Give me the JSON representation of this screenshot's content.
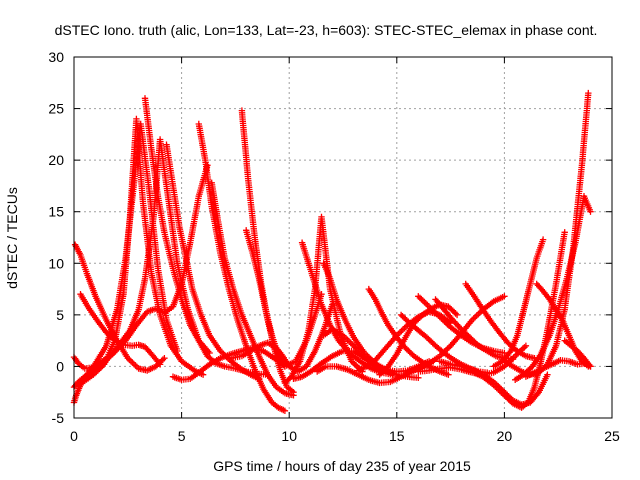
{
  "chart_data": {
    "type": "scatter",
    "title": "dSTEC Iono. truth (alic, Lon=133, Lat=-23, h=603): STEC-STEC_elemax in phase cont.",
    "xlabel": "GPS time / hours of day 235 of year 2015",
    "ylabel": "dSTEC  / TECUs",
    "xlim": [
      0,
      25
    ],
    "ylim": [
      -5,
      30
    ],
    "xticks": [
      0,
      5,
      10,
      15,
      20,
      25
    ],
    "yticks": [
      -5,
      0,
      5,
      10,
      15,
      20,
      25,
      30
    ],
    "grid": true,
    "marker": "+",
    "colors": {
      "series": "#ff0000",
      "grid": "#a0a0a0",
      "axis": "#000000"
    },
    "series": [
      {
        "x": [
          0.0,
          0.1,
          0.3,
          0.6,
          1.0,
          1.5,
          2.0,
          2.4,
          2.8,
          3.1,
          3.5,
          3.9,
          4.3,
          4.8
        ],
        "y": [
          -3.5,
          -2.8,
          -1.8,
          -0.8,
          0.3,
          2.0,
          5.5,
          10.5,
          18.0,
          23.5,
          17.0,
          9.5,
          4.5,
          1.5
        ]
      },
      {
        "x": [
          0.2,
          0.5,
          0.9,
          1.4,
          1.9,
          2.3,
          2.6,
          2.9,
          3.2,
          3.6,
          4.0,
          4.5,
          5.0,
          5.6,
          6.0
        ],
        "y": [
          -1.8,
          -1.4,
          -0.8,
          0.2,
          2.5,
          7.0,
          14.5,
          24.0,
          16.0,
          9.0,
          5.0,
          2.0,
          0.5,
          -0.4,
          -0.8
        ]
      },
      {
        "x": [
          0.05,
          0.3,
          0.6,
          1.0,
          1.5,
          2.0,
          2.5,
          3.0,
          3.4,
          3.8,
          4.2
        ],
        "y": [
          11.8,
          10.8,
          9.0,
          6.8,
          4.5,
          2.5,
          0.8,
          -0.2,
          -0.4,
          0.0,
          0.8
        ]
      },
      {
        "x": [
          0.0,
          0.2,
          0.5,
          0.9,
          1.3,
          1.8,
          2.4,
          2.9,
          3.4,
          3.8,
          4.2,
          4.6,
          5.0,
          5.4,
          5.8,
          6.2
        ],
        "y": [
          0.9,
          0.3,
          -0.2,
          -0.1,
          0.5,
          1.2,
          2.5,
          4.0,
          5.3,
          5.6,
          5.2,
          5.8,
          8.0,
          12.0,
          16.5,
          19.5
        ]
      },
      {
        "x": [
          0.0,
          0.2,
          0.5,
          0.9,
          1.4,
          2.0,
          2.6,
          3.0,
          3.3,
          3.7,
          4.0,
          4.4,
          4.8,
          5.3,
          5.8,
          6.3
        ],
        "y": [
          -2.0,
          -1.5,
          -1.0,
          -0.5,
          0.3,
          1.8,
          3.5,
          5.5,
          8.5,
          14.5,
          22.0,
          16.0,
          10.0,
          5.5,
          2.5,
          1.3
        ]
      },
      {
        "x": [
          0.3,
          0.7,
          1.1,
          1.5,
          1.9,
          2.3,
          2.7,
          3.0,
          3.3,
          3.6,
          4.0
        ],
        "y": [
          7.0,
          5.6,
          4.4,
          3.3,
          2.5,
          2.1,
          2.0,
          2.1,
          1.9,
          1.2,
          0.2
        ]
      },
      {
        "x": [
          3.3,
          3.6,
          3.9,
          4.2,
          4.6,
          5.0,
          5.4,
          5.8,
          6.2,
          6.6,
          7.0,
          7.5,
          8.0,
          8.5,
          9.0
        ],
        "y": [
          26.0,
          21.0,
          16.5,
          13.0,
          9.5,
          6.5,
          4.0,
          2.5,
          1.0,
          0.3,
          0.0,
          -0.2,
          -0.5,
          -0.7,
          -0.8
        ]
      },
      {
        "x": [
          4.3,
          4.6,
          4.9,
          5.2,
          5.5,
          5.9,
          6.3,
          6.8,
          7.3,
          7.8,
          8.2,
          8.6
        ],
        "y": [
          21.5,
          17.5,
          13.5,
          10.5,
          7.5,
          5.0,
          3.0,
          1.5,
          0.5,
          -0.3,
          -0.8,
          -1.2
        ]
      },
      {
        "x": [
          5.8,
          6.1,
          6.4,
          6.8,
          7.2,
          7.6,
          8.0,
          8.4,
          8.8,
          9.2,
          9.5,
          9.8
        ],
        "y": [
          23.5,
          20.0,
          15.5,
          11.0,
          7.5,
          4.5,
          2.0,
          -0.3,
          -2.2,
          -3.5,
          -4.0,
          -4.3
        ]
      },
      {
        "x": [
          6.4,
          6.7,
          7.0,
          7.4,
          7.8,
          8.2,
          8.6,
          9.0,
          9.4,
          9.8,
          10.2
        ],
        "y": [
          17.8,
          14.0,
          10.5,
          7.5,
          5.0,
          3.0,
          1.0,
          -0.8,
          -2.0,
          -2.6,
          -2.8
        ]
      },
      {
        "x": [
          7.8,
          8.1,
          8.4,
          8.7,
          9.0,
          9.3,
          9.6,
          9.9,
          10.2
        ],
        "y": [
          24.8,
          18.0,
          12.5,
          8.0,
          4.5,
          1.8,
          -0.5,
          -2.0,
          -2.5
        ]
      },
      {
        "x": [
          8.0,
          8.3,
          8.6,
          8.9,
          9.2,
          9.5,
          9.8
        ],
        "y": [
          13.2,
          11.0,
          8.5,
          5.5,
          3.0,
          1.0,
          0.0
        ]
      },
      {
        "x": [
          4.6,
          5.0,
          5.4,
          5.8,
          6.3,
          6.8,
          7.3,
          7.8,
          8.3,
          8.8,
          9.3,
          9.8,
          10.3,
          10.8,
          11.2,
          11.5
        ],
        "y": [
          -1.0,
          -1.3,
          -1.2,
          -0.6,
          0.2,
          0.8,
          1.2,
          1.5,
          1.8,
          1.5,
          0.8,
          0.0,
          0.5,
          2.5,
          5.0,
          7.0
        ]
      },
      {
        "x": [
          7.3,
          7.8,
          8.2,
          8.6,
          9.0,
          9.4,
          9.7,
          10.0,
          10.4,
          10.8,
          11.2,
          11.6,
          12.0
        ],
        "y": [
          0.8,
          1.0,
          1.5,
          2.0,
          2.3,
          1.8,
          1.0,
          0.0,
          -0.5,
          0.0,
          1.5,
          3.5,
          6.0
        ]
      },
      {
        "x": [
          9.8,
          10.1,
          10.5,
          10.9,
          11.2,
          11.5,
          11.9,
          12.4,
          12.9,
          13.4
        ],
        "y": [
          -1.6,
          -1.0,
          0.5,
          3.5,
          7.5,
          14.5,
          7.5,
          3.0,
          0.5,
          -0.5
        ]
      },
      {
        "x": [
          10.6,
          10.9,
          11.2,
          11.5,
          11.9,
          12.3,
          12.8,
          13.3,
          13.8,
          14.3,
          14.8
        ],
        "y": [
          12.0,
          10.0,
          8.0,
          6.0,
          4.0,
          2.5,
          1.3,
          0.5,
          -0.2,
          -0.6,
          -0.8
        ]
      },
      {
        "x": [
          11.6,
          11.9,
          12.2,
          12.6,
          13.0,
          13.5,
          14.0,
          14.5,
          15.0,
          15.5,
          16.0
        ],
        "y": [
          10.0,
          8.5,
          6.5,
          4.5,
          2.8,
          1.3,
          0.3,
          -0.4,
          -0.8,
          -1.0,
          -1.1
        ]
      },
      {
        "x": [
          10.2,
          10.6,
          11.0,
          11.5,
          12.0,
          12.5,
          13.0,
          13.5,
          14.0,
          14.5,
          15.0
        ],
        "y": [
          -1.2,
          -1.0,
          -0.5,
          0.3,
          1.0,
          1.5,
          1.5,
          0.8,
          0.0,
          -0.5,
          -0.8
        ]
      },
      {
        "x": [
          11.3,
          11.7,
          12.2,
          12.7,
          13.2,
          13.7,
          14.2,
          14.7,
          15.2,
          15.7,
          16.2,
          16.7
        ],
        "y": [
          -0.5,
          0.0,
          0.0,
          -0.3,
          -0.8,
          -1.3,
          -1.6,
          -1.5,
          -1.0,
          -0.5,
          0.0,
          0.5
        ]
      },
      {
        "x": [
          11.6,
          12.0,
          12.5,
          13.0,
          13.5,
          14.0,
          14.5,
          15.0,
          15.5,
          16.0,
          16.5
        ],
        "y": [
          3.0,
          3.6,
          3.0,
          2.0,
          1.0,
          0.2,
          -0.3,
          -0.5,
          -0.4,
          0.0,
          0.5
        ]
      },
      {
        "x": [
          13.7,
          14.0,
          14.3,
          14.6,
          15.0,
          15.4,
          15.8,
          16.2,
          16.6,
          17.0,
          17.4
        ],
        "y": [
          7.5,
          6.5,
          5.2,
          4.0,
          2.8,
          1.8,
          1.0,
          0.4,
          -0.1,
          -0.5,
          -0.8
        ]
      },
      {
        "x": [
          13.2,
          13.6,
          14.0,
          14.5,
          15.0,
          15.5,
          16.0,
          16.5,
          17.0,
          17.5
        ],
        "y": [
          -0.4,
          0.0,
          0.6,
          1.8,
          3.0,
          4.0,
          4.8,
          5.3,
          5.0,
          4.2
        ]
      },
      {
        "x": [
          14.2,
          14.6,
          15.0,
          15.4,
          15.8,
          16.2,
          16.6,
          17.0,
          17.4,
          17.8
        ],
        "y": [
          -0.8,
          0.0,
          1.2,
          2.8,
          4.2,
          5.0,
          5.6,
          6.0,
          5.8,
          5.0
        ]
      },
      {
        "x": [
          15.2,
          15.6,
          16.0,
          16.4,
          16.8,
          17.2,
          17.6,
          18.0,
          18.4,
          18.8,
          19.2
        ],
        "y": [
          5.0,
          4.2,
          3.5,
          2.8,
          2.0,
          1.3,
          0.7,
          0.2,
          -0.2,
          -0.5,
          -0.6
        ]
      },
      {
        "x": [
          15.5,
          16.0,
          16.5,
          17.0,
          17.5,
          18.0,
          18.5,
          19.0,
          19.5,
          20.0
        ],
        "y": [
          -0.5,
          -0.2,
          0.3,
          1.0,
          2.0,
          3.2,
          4.5,
          5.5,
          6.3,
          6.8
        ]
      },
      {
        "x": [
          16.0,
          16.5,
          17.0,
          17.5,
          18.0,
          18.5,
          19.0,
          19.5,
          20.0
        ],
        "y": [
          6.8,
          5.8,
          4.8,
          3.8,
          3.0,
          2.3,
          1.8,
          1.5,
          1.3
        ]
      },
      {
        "x": [
          16.8,
          17.2,
          17.6,
          18.0,
          18.4,
          18.8,
          19.2,
          19.6,
          20.0,
          20.4
        ],
        "y": [
          6.5,
          5.5,
          4.5,
          3.6,
          2.8,
          2.0,
          1.5,
          1.0,
          0.8,
          0.7
        ]
      },
      {
        "x": [
          18.2,
          18.6,
          19.0,
          19.4,
          19.8,
          20.2,
          20.6,
          21.0,
          21.4
        ],
        "y": [
          8.0,
          6.8,
          5.5,
          4.3,
          3.2,
          2.2,
          1.5,
          1.0,
          0.8
        ]
      },
      {
        "x": [
          16.0,
          16.5,
          17.0,
          17.5,
          18.0,
          18.5,
          19.0,
          19.5,
          20.0,
          20.5,
          21.0
        ],
        "y": [
          -0.5,
          -0.4,
          -0.2,
          -0.1,
          -0.3,
          -0.6,
          -0.8,
          -0.6,
          0.0,
          1.0,
          2.0
        ]
      },
      {
        "x": [
          17.0,
          17.5,
          18.0,
          18.5,
          19.0,
          19.5,
          20.0,
          20.4,
          20.8,
          21.2,
          21.6,
          22.0
        ],
        "y": [
          0.5,
          0.2,
          0.0,
          -0.3,
          -0.8,
          -1.5,
          -2.5,
          -3.3,
          -3.7,
          -3.5,
          -2.5,
          -0.8
        ]
      },
      {
        "x": [
          18.5,
          19.0,
          19.5,
          20.0,
          20.4,
          20.8,
          21.1,
          21.4,
          21.7,
          22.0,
          22.4,
          22.8
        ],
        "y": [
          -0.5,
          -1.0,
          -1.8,
          -2.8,
          -3.6,
          -4.0,
          -3.5,
          -2.0,
          0.5,
          3.5,
          8.0,
          13.0
        ]
      },
      {
        "x": [
          19.5,
          19.9,
          20.3,
          20.6,
          20.9,
          21.2,
          21.5,
          21.8
        ],
        "y": [
          0.0,
          0.5,
          1.5,
          3.0,
          5.5,
          8.0,
          10.5,
          12.3
        ]
      },
      {
        "x": [
          20.0,
          20.4,
          20.8,
          21.2,
          21.6,
          22.0,
          22.4,
          22.8,
          23.2,
          23.6,
          23.9
        ],
        "y": [
          0.5,
          0.0,
          -0.5,
          -0.8,
          -0.6,
          0.2,
          2.0,
          5.5,
          11.5,
          19.5,
          26.5
        ]
      },
      {
        "x": [
          20.5,
          20.9,
          21.3,
          21.7,
          22.1,
          22.5,
          22.9,
          23.3,
          23.7,
          24.0
        ],
        "y": [
          -1.3,
          -0.8,
          0.0,
          1.2,
          3.0,
          5.5,
          8.5,
          12.0,
          16.5,
          15.0
        ]
      },
      {
        "x": [
          21.5,
          21.8,
          22.1,
          22.4,
          22.7,
          23.0,
          23.3,
          23.6,
          23.9
        ],
        "y": [
          8.0,
          7.3,
          6.5,
          5.5,
          4.5,
          3.0,
          1.5,
          0.5,
          0.0
        ]
      },
      {
        "x": [
          21.0,
          21.4,
          21.8,
          22.2,
          22.6,
          23.0,
          23.4,
          23.8,
          24.0
        ],
        "y": [
          -1.0,
          -0.6,
          -0.2,
          0.2,
          0.6,
          0.5,
          0.2,
          0.3,
          0.0
        ]
      },
      {
        "x": [
          22.8,
          23.1,
          23.4,
          23.7,
          24.0
        ],
        "y": [
          2.5,
          2.0,
          1.5,
          0.8,
          0.0
        ]
      }
    ]
  }
}
